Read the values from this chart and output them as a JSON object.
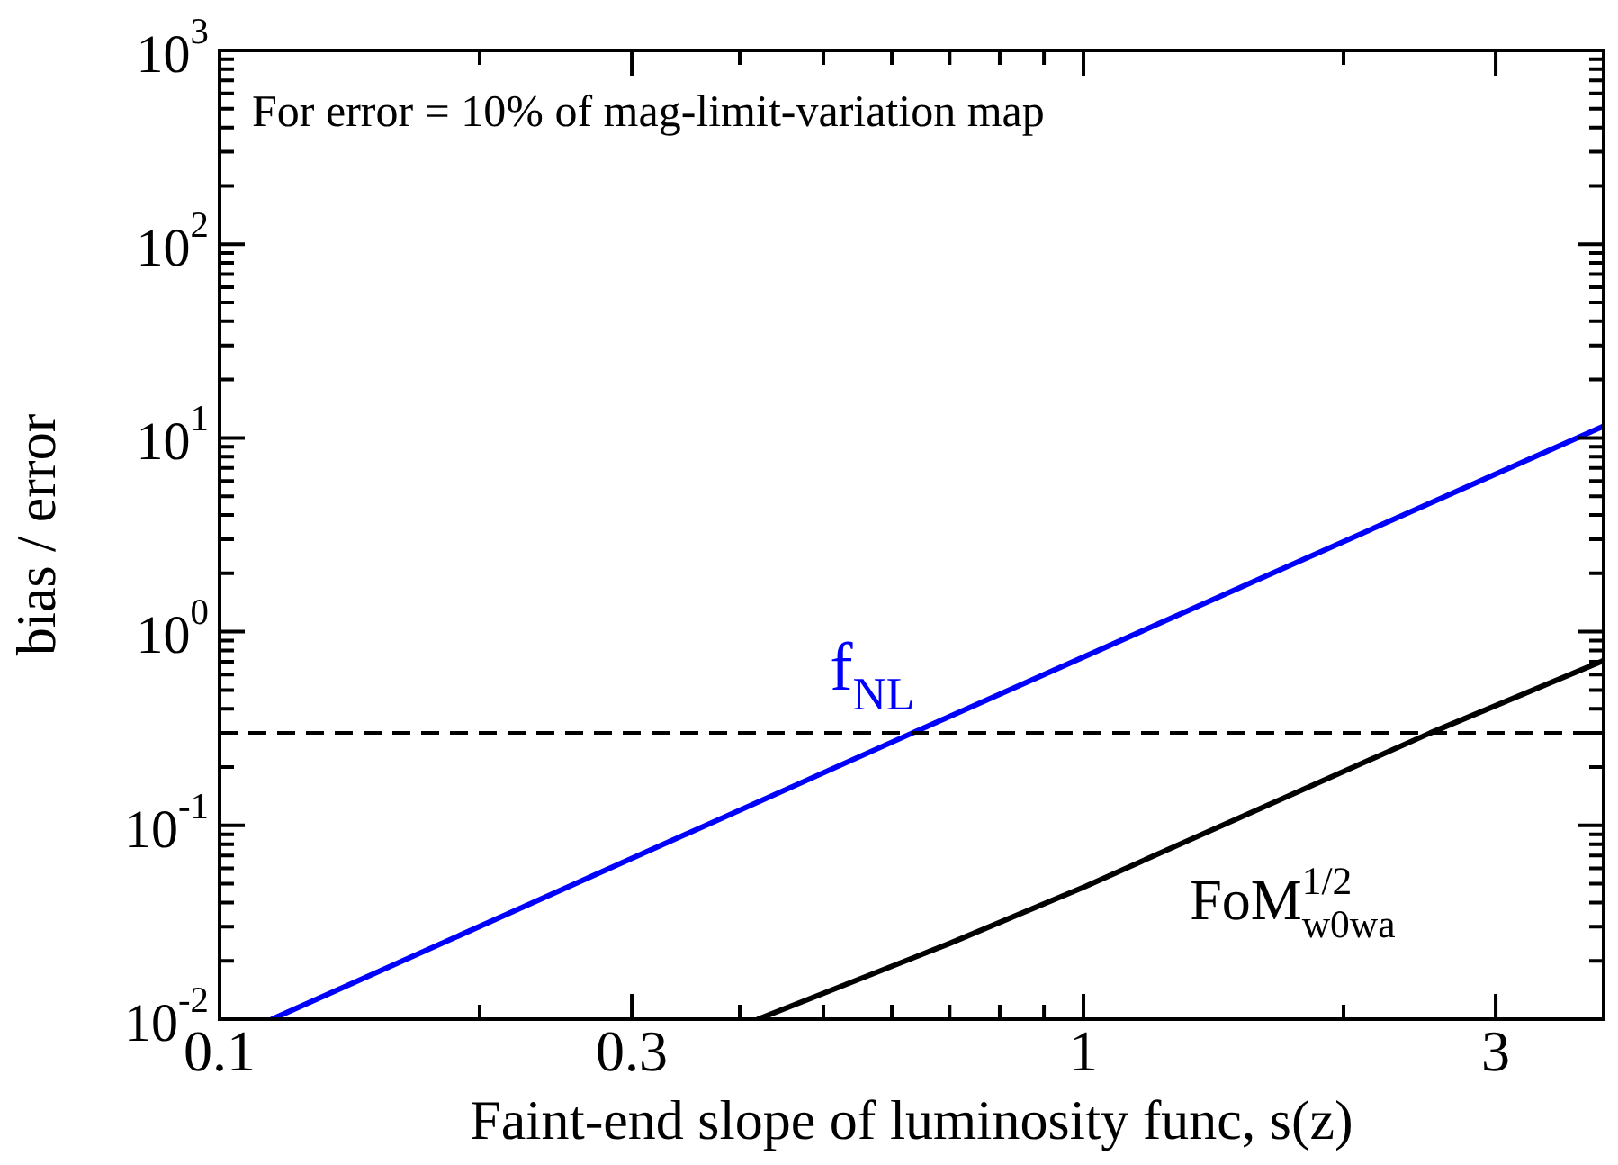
{
  "chart_data": {
    "type": "line",
    "xlabel": "Faint-end slope of luminosity func, s(z)",
    "ylabel": "bias / error",
    "log": "xy",
    "marker": "none",
    "line_style": "solid",
    "legend": false,
    "annotations": [
      "For error = 10% of mag-limit-variation map"
    ],
    "xlim": [
      0.1,
      4
    ],
    "ylim": [
      0.01,
      1000
    ],
    "xticks": [
      0.1,
      {
        "value": 0.2,
        "label": null
      },
      0.3,
      {
        "value": 0.4,
        "label": null
      },
      {
        "value": 0.5,
        "label": null
      },
      {
        "value": 0.6,
        "label": null
      },
      {
        "value": 0.7,
        "label": null
      },
      {
        "value": 0.8,
        "label": null
      },
      {
        "value": 0.9,
        "label": null
      },
      1,
      {
        "value": 2,
        "label": null
      },
      3
    ],
    "yticks": [
      {
        "value": 0.01,
        "label": "10$^{-2}$"
      },
      {
        "value": 0.02,
        "label": null
      },
      {
        "value": 0.03,
        "label": null
      },
      {
        "value": 0.04,
        "label": null
      },
      {
        "value": 0.05,
        "label": null
      },
      {
        "value": 0.06,
        "label": null
      },
      {
        "value": 0.07,
        "label": null
      },
      {
        "value": 0.08,
        "label": null
      },
      {
        "value": 0.09,
        "label": null
      },
      {
        "value": 0.1,
        "label": "10$^{-1}$"
      },
      {
        "value": 0.2,
        "label": null
      },
      {
        "value": 0.3,
        "label": null
      },
      {
        "value": 0.4,
        "label": null
      },
      {
        "value": 0.5,
        "label": null
      },
      {
        "value": 0.6,
        "label": null
      },
      {
        "value": 0.7,
        "label": null
      },
      {
        "value": 0.8,
        "label": null
      },
      {
        "value": 0.9,
        "label": null
      },
      {
        "value": 1,
        "label": "10$^{0}$"
      },
      {
        "value": 2,
        "label": null
      },
      {
        "value": 3,
        "label": null
      },
      {
        "value": 4,
        "label": null
      },
      {
        "value": 5,
        "label": null
      },
      {
        "value": 6,
        "label": null
      },
      {
        "value": 7,
        "label": null
      },
      {
        "value": 8,
        "label": null
      },
      {
        "value": 9,
        "label": null
      },
      {
        "value": 10,
        "label": "10$^{1}$"
      },
      {
        "value": 20,
        "label": null
      },
      {
        "value": 30,
        "label": null
      },
      {
        "value": 40,
        "label": null
      },
      {
        "value": 50,
        "label": null
      },
      {
        "value": 60,
        "label": null
      },
      {
        "value": 70,
        "label": null
      },
      {
        "value": 80,
        "label": null
      },
      {
        "value": 90,
        "label": null
      },
      {
        "value": 100,
        "label": "10$^{2}$"
      },
      {
        "value": 200,
        "label": null
      },
      {
        "value": 300,
        "label": null
      },
      {
        "value": 400,
        "label": null
      },
      {
        "value": 500,
        "label": null
      },
      {
        "value": 600,
        "label": null
      },
      {
        "value": 700,
        "label": null
      },
      {
        "value": 800,
        "label": null
      },
      {
        "value": 900,
        "label": null
      },
      {
        "value": 1000,
        "label": "10$^{3}$"
      }
    ],
    "ref_lines": [
      {
        "axis": "y",
        "value": 0.3,
        "color": "#000000",
        "line_style": "dashed"
      }
    ],
    "series": [
      {
        "name": "f$_{NL}$",
        "color": "#0000ff",
        "x": [
          0.115,
          0.634,
          4
        ],
        "values": [
          0.01,
          0.3,
          11.5
        ]
      },
      {
        "name": "FoM$^{1/2}$$_{w0wa}$",
        "color": "#000000",
        "x": [
          0.42,
          0.7,
          1,
          2.52,
          4
        ],
        "values": [
          0.01,
          0.0246,
          0.048,
          0.3,
          0.71
        ]
      }
    ]
  }
}
